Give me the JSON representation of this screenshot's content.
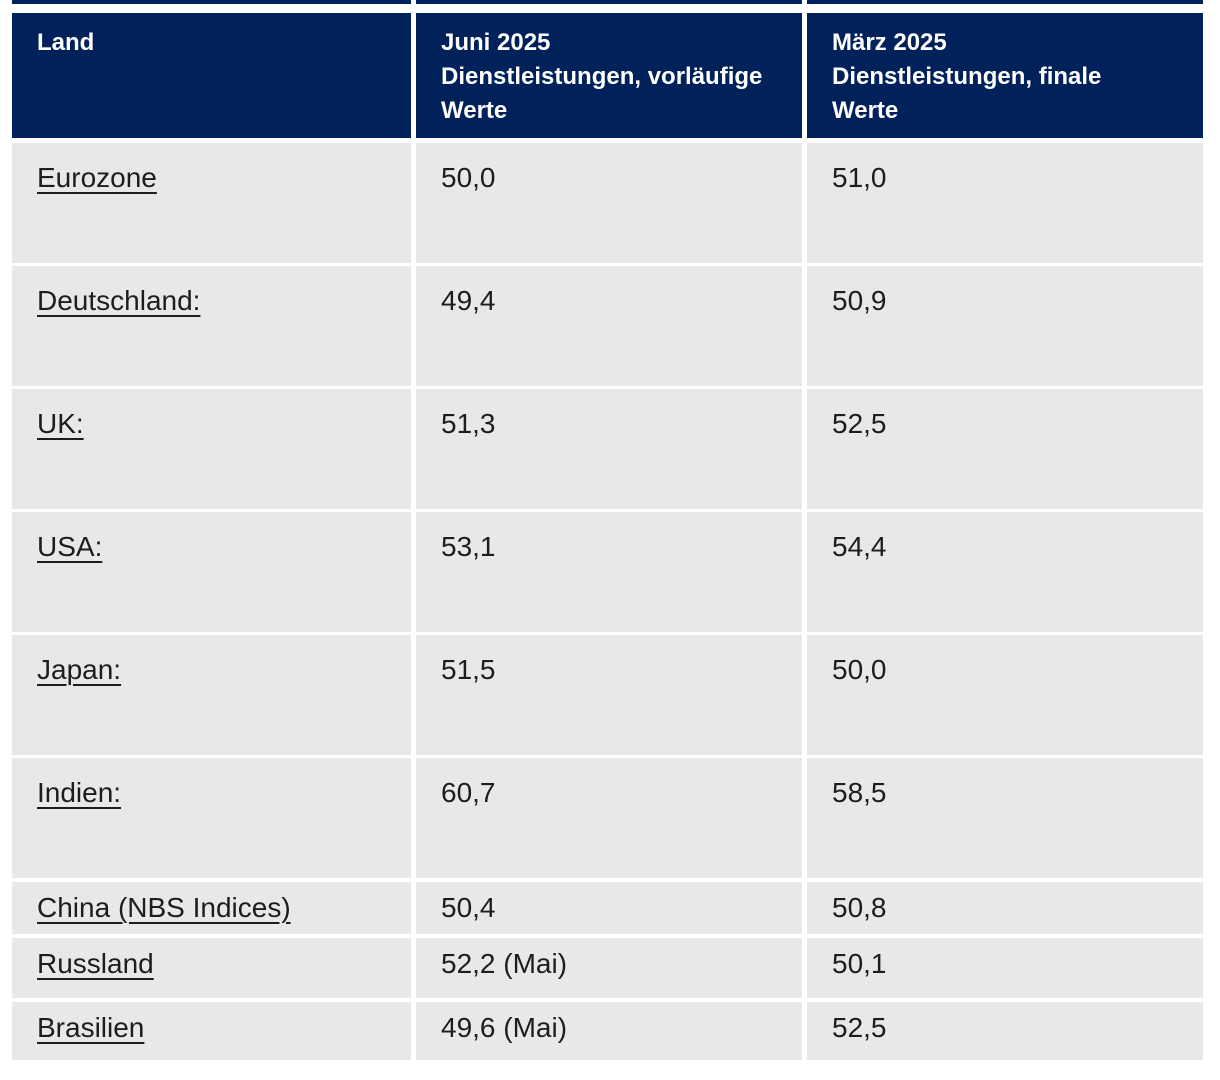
{
  "colors": {
    "header_bg": "#01215a",
    "row_bg": "#e8e8e8",
    "header_text": "#ffffff",
    "body_text": "#1d1d1d",
    "page_bg": "#ffffff"
  },
  "chart_data": {
    "type": "table",
    "columns": [
      {
        "label": "Land",
        "lines": [
          "Land"
        ]
      },
      {
        "label": "Juni 2025 Dienstleistungen, vorläufige Werte",
        "lines": [
          "Juni 2025",
          "Dienstleistungen, vorläufige",
          "Werte"
        ]
      },
      {
        "label": "März 2025 Dienstleistungen, finale Werte",
        "lines": [
          "März 2025",
          "Dienstleistungen, finale",
          "Werte"
        ]
      }
    ],
    "rows": [
      {
        "land": "Eurozone",
        "juni": "50,0",
        "maerz": "51,0",
        "juni_num": 50.0,
        "maerz_num": 51.0
      },
      {
        "land": "Deutschland:",
        "juni": "49,4",
        "maerz": "50,9",
        "juni_num": 49.4,
        "maerz_num": 50.9
      },
      {
        "land": "UK:",
        "juni": "51,3",
        "maerz": "52,5",
        "juni_num": 51.3,
        "maerz_num": 52.5
      },
      {
        "land": "USA:",
        "juni": "53,1",
        "maerz": "54,4",
        "juni_num": 53.1,
        "maerz_num": 54.4
      },
      {
        "land": "Japan:",
        "juni": "51,5",
        "maerz": "50,0",
        "juni_num": 51.5,
        "maerz_num": 50.0
      },
      {
        "land": "Indien:",
        "juni": "60,7",
        "maerz": "58,5",
        "juni_num": 60.7,
        "maerz_num": 58.5
      },
      {
        "land": "China (NBS Indices)",
        "juni": "50,4",
        "maerz": "50,8",
        "juni_num": 50.4,
        "maerz_num": 50.8
      },
      {
        "land": "Russland",
        "juni": "52,2 (Mai)",
        "maerz": "50,1",
        "juni_num": 52.2,
        "maerz_num": 50.1
      },
      {
        "land": "Brasilien",
        "juni": "49,6 (Mai)",
        "maerz": "52,5",
        "juni_num": 49.6,
        "maerz_num": 52.5
      }
    ]
  }
}
